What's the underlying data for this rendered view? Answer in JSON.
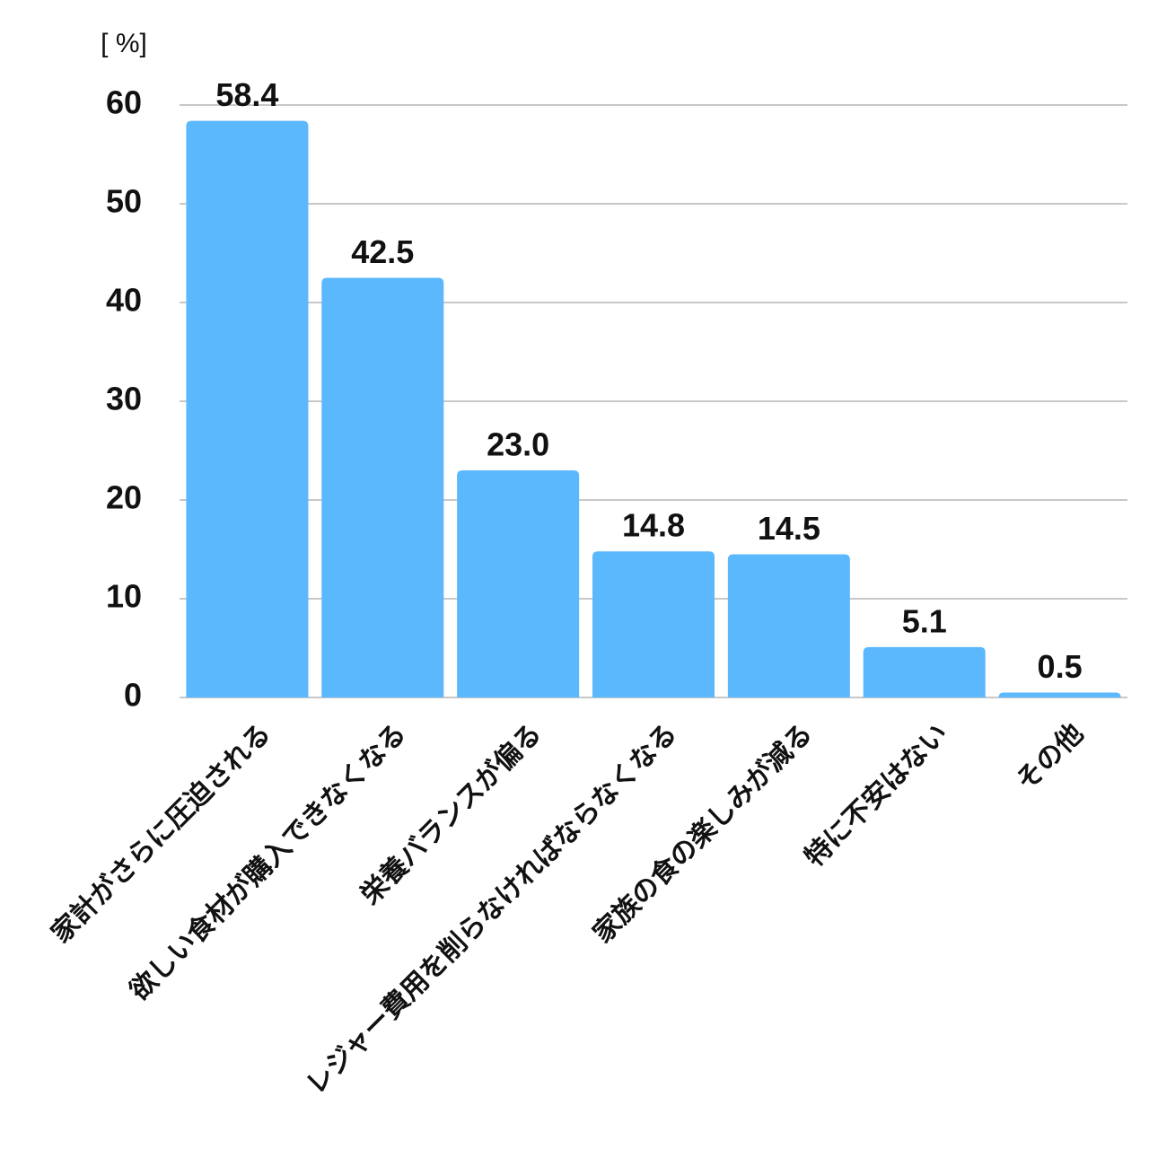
{
  "chart_data": {
    "type": "bar",
    "y_label": "[ %]",
    "categories": [
      "家計がさらに圧迫される",
      "欲しい食材が購入できなくなる",
      "栄養バランスが偏る",
      "レジャー費用を削らなければならなくなる",
      "家族の食の楽しみが減る",
      "特に不安はない",
      "その他"
    ],
    "values": [
      58.4,
      42.5,
      23.0,
      14.8,
      14.5,
      5.1,
      0.5
    ],
    "value_labels": [
      "58.4",
      "42.5",
      "23.0",
      "14.8",
      "14.5",
      "5.1",
      "0.5"
    ],
    "color": "#5bb8fd",
    "ylim": [
      0,
      60
    ],
    "yticks": [
      0,
      10,
      20,
      30,
      40,
      50,
      60
    ],
    "grid": true
  }
}
